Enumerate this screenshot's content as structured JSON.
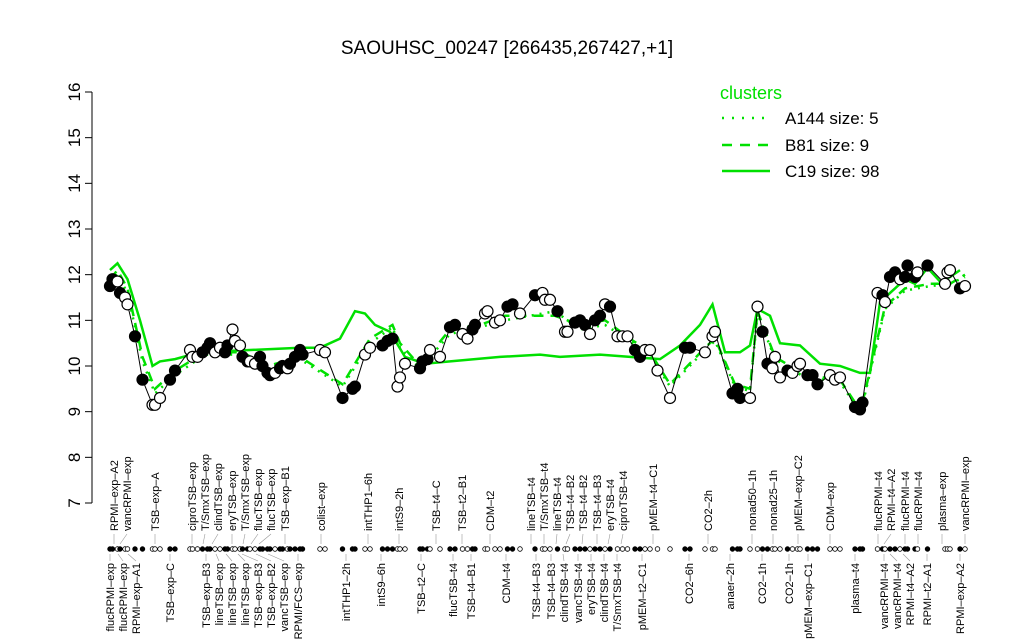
{
  "chart_data": {
    "type": "line",
    "title": "SAOUHSC_00247 [266435,267427,+1]",
    "ylim": [
      7,
      16
    ],
    "yticks": [
      7,
      8,
      9,
      10,
      11,
      12,
      13,
      14,
      15,
      16
    ],
    "grid": false,
    "legend": {
      "title": "clusters",
      "placement": "top-right",
      "entries": [
        {
          "label": "A144 size: 5",
          "style": "dotted"
        },
        {
          "label": "B81 size: 9",
          "style": "dashed"
        },
        {
          "label": "C19 size: 98",
          "style": "solid"
        }
      ]
    },
    "colors": {
      "clusters": "#00e000",
      "samples": "#000000"
    },
    "samples": [
      [
        2,
        11.75,
        1
      ],
      [
        3,
        11.9,
        1
      ],
      [
        5,
        11.85,
        0
      ],
      [
        6,
        11.6,
        1
      ],
      [
        8,
        11.5,
        0
      ],
      [
        9,
        11.35,
        0
      ],
      [
        12,
        10.65,
        1
      ],
      [
        15,
        9.7,
        1
      ],
      [
        19,
        9.15,
        0
      ],
      [
        20,
        9.15,
        0
      ],
      [
        22,
        9.3,
        0
      ],
      [
        26,
        9.7,
        1
      ],
      [
        28,
        9.9,
        1
      ],
      [
        34,
        10.35,
        0
      ],
      [
        35,
        10.2,
        0
      ],
      [
        37,
        10.2,
        0
      ],
      [
        39,
        10.3,
        1
      ],
      [
        41,
        10.4,
        1
      ],
      [
        42,
        10.5,
        1
      ],
      [
        44,
        10.3,
        0
      ],
      [
        46,
        10.4,
        0
      ],
      [
        48,
        10.3,
        1
      ],
      [
        49,
        10.45,
        1
      ],
      [
        51,
        10.8,
        0
      ],
      [
        52,
        10.55,
        0
      ],
      [
        54,
        10.45,
        0
      ],
      [
        55,
        10.2,
        1
      ],
      [
        57,
        10.1,
        1
      ],
      [
        58,
        10.1,
        0
      ],
      [
        60,
        10.05,
        0
      ],
      [
        62,
        10.2,
        1
      ],
      [
        63,
        10.0,
        1
      ],
      [
        65,
        9.85,
        1
      ],
      [
        66,
        9.8,
        1
      ],
      [
        68,
        9.85,
        0
      ],
      [
        70,
        9.95,
        1
      ],
      [
        71,
        10.0,
        1
      ],
      [
        73,
        9.95,
        0
      ],
      [
        74,
        10.05,
        1
      ],
      [
        76,
        10.2,
        1
      ],
      [
        78,
        10.35,
        1
      ],
      [
        79,
        10.25,
        1
      ],
      [
        86,
        10.35,
        0
      ],
      [
        88,
        10.3,
        0
      ],
      [
        95,
        9.3,
        1
      ],
      [
        99,
        9.5,
        1
      ],
      [
        100,
        9.55,
        1
      ],
      [
        104,
        10.25,
        0
      ],
      [
        106,
        10.4,
        0
      ],
      [
        111,
        10.45,
        1
      ],
      [
        113,
        10.55,
        1
      ],
      [
        115,
        10.6,
        1
      ],
      [
        117,
        9.55,
        0
      ],
      [
        118,
        9.75,
        0
      ],
      [
        120,
        10.05,
        0
      ],
      [
        126,
        9.95,
        1
      ],
      [
        127,
        10.1,
        1
      ],
      [
        129,
        10.15,
        1
      ],
      [
        130,
        10.35,
        0
      ],
      [
        134,
        10.2,
        0
      ],
      [
        138,
        10.85,
        1
      ],
      [
        140,
        10.9,
        1
      ],
      [
        143,
        10.7,
        0
      ],
      [
        145,
        10.6,
        0
      ],
      [
        147,
        10.8,
        1
      ],
      [
        148,
        10.9,
        1
      ],
      [
        152,
        11.15,
        0
      ],
      [
        153,
        11.2,
        0
      ],
      [
        156,
        10.95,
        0
      ],
      [
        158,
        11.0,
        0
      ],
      [
        161,
        11.3,
        1
      ],
      [
        163,
        11.35,
        1
      ],
      [
        166,
        11.15,
        0
      ],
      [
        172,
        11.55,
        1
      ],
      [
        175,
        11.6,
        0
      ],
      [
        176,
        11.45,
        0
      ],
      [
        178,
        11.45,
        0
      ],
      [
        181,
        11.2,
        1
      ],
      [
        184,
        10.75,
        0
      ],
      [
        185,
        10.75,
        0
      ],
      [
        188,
        10.95,
        1
      ],
      [
        190,
        11.0,
        1
      ],
      [
        192,
        10.9,
        1
      ],
      [
        194,
        10.7,
        0
      ],
      [
        196,
        11.0,
        1
      ],
      [
        198,
        11.1,
        1
      ],
      [
        200,
        11.35,
        0
      ],
      [
        202,
        11.3,
        1
      ],
      [
        205,
        10.65,
        0
      ],
      [
        207,
        10.65,
        0
      ],
      [
        209,
        10.65,
        0
      ],
      [
        212,
        10.35,
        1
      ],
      [
        214,
        10.2,
        1
      ],
      [
        216,
        10.35,
        0
      ],
      [
        218,
        10.35,
        0
      ],
      [
        221,
        9.9,
        0
      ],
      [
        226,
        9.3,
        0
      ],
      [
        232,
        10.4,
        1
      ],
      [
        234,
        10.4,
        1
      ],
      [
        240,
        10.3,
        0
      ],
      [
        243,
        10.65,
        0
      ],
      [
        244,
        10.75,
        0
      ],
      [
        251,
        9.4,
        1
      ],
      [
        253,
        9.5,
        1
      ],
      [
        254,
        9.3,
        1
      ],
      [
        258,
        9.3,
        0
      ],
      [
        261,
        11.3,
        0
      ],
      [
        263,
        10.75,
        1
      ],
      [
        265,
        10.05,
        1
      ],
      [
        267,
        9.95,
        0
      ],
      [
        268,
        10.2,
        0
      ],
      [
        270,
        9.75,
        0
      ],
      [
        273,
        9.9,
        1
      ],
      [
        275,
        9.85,
        0
      ],
      [
        277,
        10.0,
        0
      ],
      [
        278,
        10.05,
        0
      ],
      [
        281,
        9.8,
        1
      ],
      [
        283,
        9.8,
        1
      ],
      [
        285,
        9.6,
        1
      ],
      [
        290,
        9.8,
        0
      ],
      [
        292,
        9.7,
        0
      ],
      [
        294,
        9.75,
        0
      ],
      [
        300,
        9.1,
        1
      ],
      [
        302,
        9.05,
        1
      ],
      [
        303,
        9.2,
        1
      ],
      [
        309,
        11.6,
        0
      ],
      [
        311,
        11.55,
        1
      ],
      [
        312,
        11.4,
        0
      ],
      [
        314,
        11.95,
        1
      ],
      [
        316,
        12.05,
        1
      ],
      [
        318,
        11.9,
        0
      ],
      [
        320,
        11.95,
        1
      ],
      [
        321,
        12.2,
        1
      ],
      [
        324,
        11.95,
        1
      ],
      [
        325,
        12.05,
        0
      ],
      [
        329,
        12.2,
        1
      ],
      [
        336,
        11.8,
        0
      ],
      [
        337,
        12.05,
        0
      ],
      [
        338,
        12.1,
        0
      ],
      [
        342,
        11.7,
        1
      ],
      [
        344,
        11.75,
        0
      ]
    ],
    "cluster_lines": {
      "A144": [
        [
          2,
          11.85
        ],
        [
          5,
          12.0
        ],
        [
          9,
          11.6
        ],
        [
          15,
          10.1
        ],
        [
          20,
          9.4
        ],
        [
          28,
          9.8
        ],
        [
          40,
          10.25
        ],
        [
          55,
          10.25
        ],
        [
          65,
          9.95
        ],
        [
          78,
          10.15
        ],
        [
          95,
          9.55
        ],
        [
          106,
          10.5
        ],
        [
          115,
          10.85
        ],
        [
          118,
          10.4
        ],
        [
          126,
          9.95
        ],
        [
          138,
          10.7
        ],
        [
          150,
          10.85
        ],
        [
          160,
          11.0
        ],
        [
          170,
          11.1
        ],
        [
          180,
          11.2
        ],
        [
          190,
          10.8
        ],
        [
          200,
          10.9
        ],
        [
          210,
          10.55
        ],
        [
          218,
          10.25
        ],
        [
          226,
          9.55
        ],
        [
          240,
          10.35
        ],
        [
          244,
          10.55
        ],
        [
          252,
          9.55
        ],
        [
          258,
          9.45
        ],
        [
          261,
          11.15
        ],
        [
          268,
          10.15
        ],
        [
          280,
          9.75
        ],
        [
          294,
          9.65
        ],
        [
          300,
          9.15
        ],
        [
          303,
          9.15
        ],
        [
          312,
          11.25
        ],
        [
          320,
          11.65
        ],
        [
          330,
          11.75
        ],
        [
          338,
          11.8
        ],
        [
          344,
          11.95
        ]
      ],
      "B81": [
        [
          2,
          11.9
        ],
        [
          5,
          12.1
        ],
        [
          9,
          11.7
        ],
        [
          15,
          10.2
        ],
        [
          20,
          9.5
        ],
        [
          28,
          9.9
        ],
        [
          40,
          10.3
        ],
        [
          55,
          10.3
        ],
        [
          65,
          10.0
        ],
        [
          78,
          10.2
        ],
        [
          95,
          9.6
        ],
        [
          106,
          10.6
        ],
        [
          115,
          10.9
        ],
        [
          118,
          10.5
        ],
        [
          126,
          10.0
        ],
        [
          138,
          10.8
        ],
        [
          150,
          10.9
        ],
        [
          160,
          11.1
        ],
        [
          170,
          11.1
        ],
        [
          180,
          11.1
        ],
        [
          190,
          10.9
        ],
        [
          200,
          11.0
        ],
        [
          210,
          10.6
        ],
        [
          218,
          10.3
        ],
        [
          226,
          9.6
        ],
        [
          240,
          10.4
        ],
        [
          244,
          10.6
        ],
        [
          252,
          9.6
        ],
        [
          258,
          9.5
        ],
        [
          261,
          11.2
        ],
        [
          268,
          10.2
        ],
        [
          280,
          9.8
        ],
        [
          294,
          9.7
        ],
        [
          300,
          9.2
        ],
        [
          303,
          9.2
        ],
        [
          312,
          11.3
        ],
        [
          320,
          11.7
        ],
        [
          330,
          11.8
        ],
        [
          338,
          11.8
        ],
        [
          344,
          12.0
        ]
      ],
      "C19": [
        [
          2,
          12.1
        ],
        [
          5,
          12.25
        ],
        [
          9,
          11.9
        ],
        [
          14,
          11.0
        ],
        [
          19,
          10.0
        ],
        [
          22,
          10.1
        ],
        [
          28,
          10.15
        ],
        [
          38,
          10.3
        ],
        [
          58,
          10.35
        ],
        [
          78,
          10.4
        ],
        [
          86,
          10.4
        ],
        [
          94,
          10.6
        ],
        [
          100,
          11.2
        ],
        [
          104,
          11.15
        ],
        [
          108,
          10.9
        ],
        [
          114,
          10.75
        ],
        [
          120,
          10.2
        ],
        [
          128,
          10.05
        ],
        [
          138,
          10.1
        ],
        [
          158,
          10.2
        ],
        [
          174,
          10.25
        ],
        [
          182,
          10.2
        ],
        [
          198,
          10.25
        ],
        [
          210,
          10.2
        ],
        [
          222,
          10.15
        ],
        [
          230,
          10.45
        ],
        [
          238,
          10.9
        ],
        [
          243,
          11.35
        ],
        [
          248,
          10.3
        ],
        [
          254,
          10.3
        ],
        [
          258,
          10.45
        ],
        [
          261,
          11.25
        ],
        [
          266,
          11.1
        ],
        [
          270,
          10.5
        ],
        [
          278,
          10.45
        ],
        [
          286,
          10.05
        ],
        [
          294,
          10.0
        ],
        [
          302,
          9.85
        ],
        [
          306,
          9.85
        ],
        [
          310,
          11.4
        ],
        [
          316,
          11.7
        ],
        [
          320,
          11.9
        ],
        [
          324,
          11.8
        ],
        [
          329,
          12.15
        ],
        [
          334,
          11.85
        ],
        [
          338,
          11.95
        ],
        [
          342,
          12.1
        ]
      ]
    },
    "tick_labels_top": [
      [
        3.6,
        "RPMI–exp–A2"
      ],
      [
        6,
        "vancRPMI–exp"
      ],
      [
        20,
        "TSB–exp–A"
      ],
      [
        34.8,
        "ciproTSB–exp"
      ],
      [
        39.2,
        "T/SmxTSB–exp"
      ],
      [
        42.8,
        "clindTSB–exp"
      ],
      [
        50.8,
        "eryTSB–exp"
      ],
      [
        55.2,
        "T/SmxTSB–exp"
      ],
      [
        58.4,
        "flucTSB–exp"
      ],
      [
        61.6,
        "flucTSB–exp"
      ],
      [
        72,
        "TSB–exp–B1"
      ],
      [
        86.4,
        "colist–exp"
      ],
      [
        105.2,
        "intTHP1–6h"
      ],
      [
        117.6,
        "intS9–2h"
      ],
      [
        132.4,
        "TSB–t4–C"
      ],
      [
        142.8,
        "TSB–t2–B1"
      ],
      [
        154,
        "CDM–t2"
      ],
      [
        170.4,
        "lineTSB–t4"
      ],
      [
        175.6,
        "T/SmxTSB–t4"
      ],
      [
        180.4,
        "lineTSB–t4"
      ],
      [
        184.4,
        "TSB–t4–B2"
      ],
      [
        190.8,
        "TSB–t4–B2"
      ],
      [
        196.8,
        "TSB–t4–B3"
      ],
      [
        201.2,
        "eryTSB–t4"
      ],
      [
        206.4,
        "ciproTSB–t4"
      ],
      [
        219.2,
        "pMEM–t4–C1"
      ],
      [
        241.2,
        "CO2–2h"
      ],
      [
        258.8,
        "nonad50–1h"
      ],
      [
        267.2,
        "nonad25–1h"
      ],
      [
        277.2,
        "pMEM–exp–C2"
      ],
      [
        290,
        "CDM–exp"
      ],
      [
        309.2,
        "flucRPMI–t4"
      ],
      [
        311.6,
        "RPMI–t4–A2"
      ],
      [
        320,
        "flucRPMI–t4"
      ],
      [
        325.2,
        "flucRPMI–t4"
      ],
      [
        334.8,
        "plasma–exp"
      ],
      [
        344,
        "vancRPMI–exp"
      ]
    ],
    "tick_labels_bottom": [
      [
        2,
        "flucRPMI–exp"
      ],
      [
        5.2,
        "flucRPMI–exp"
      ],
      [
        9.2,
        "RPMI–exp–A1"
      ],
      [
        26,
        "TSB–exp–C"
      ],
      [
        40.4,
        "TSB–exp–B3"
      ],
      [
        44.4,
        "lineTSB–exp"
      ],
      [
        48.4,
        "lineTSB–exp"
      ],
      [
        53.2,
        "lineTSB–exp"
      ],
      [
        54.8,
        "TSB–exp–B3"
      ],
      [
        60.4,
        "TSB–exp–B2"
      ],
      [
        65.2,
        "vancTSB–exp"
      ],
      [
        77.2,
        "RPMI/FCS–exp"
      ],
      [
        96.4,
        "intTHP1–2h"
      ],
      [
        110.4,
        "intS9–6h"
      ],
      [
        126.4,
        "TSB–t2–C"
      ],
      [
        139.2,
        "flucTSB–t4"
      ],
      [
        146.4,
        "TSB–t4–B1"
      ],
      [
        160.4,
        "CDM–t4"
      ],
      [
        172.4,
        "TSB–t4–B3"
      ],
      [
        178.4,
        "TSB–t4–B3"
      ],
      [
        183.2,
        "clindTSB–t4"
      ],
      [
        189.2,
        "vancTSB–t4"
      ],
      [
        194.4,
        "eryTSB–t4"
      ],
      [
        199.6,
        "clindTSB–t4"
      ],
      [
        204.8,
        "T/SmxTSB–t4"
      ],
      [
        214.8,
        "pMEM–t2–C1"
      ],
      [
        233.6,
        "CO2–6h"
      ],
      [
        250,
        "anaer–2h"
      ],
      [
        262.8,
        "CO2–1h"
      ],
      [
        273.6,
        "CO2–1h"
      ],
      [
        281.2,
        "pMEM–exp–C1"
      ],
      [
        300,
        "plasma–t4"
      ],
      [
        311.6,
        "vancRPMI–t4"
      ],
      [
        314,
        "vancRPMI–t4"
      ],
      [
        319.2,
        "RPMI–t4–A2"
      ],
      [
        328.8,
        "RPMI–t2–A1"
      ],
      [
        342,
        "RPMI–exp–A2"
      ]
    ]
  }
}
